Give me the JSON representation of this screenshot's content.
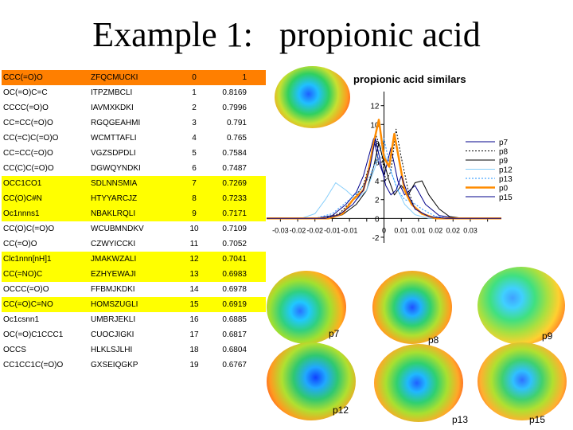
{
  "slide": {
    "title": "Example 1:   propionic acid"
  },
  "table": {
    "rows": [
      {
        "smiles": "CCC(=O)O",
        "code": "ZFQCMUCKI",
        "rank": "0",
        "score": "1",
        "highlight": "orange"
      },
      {
        "smiles": "OC(=O)C=C",
        "code": "ITPZMBCLI",
        "rank": "1",
        "score": "0.8169",
        "highlight": "none"
      },
      {
        "smiles": "CCCC(=O)O",
        "code": "IAVMXKDKI",
        "rank": "2",
        "score": "0.7996",
        "highlight": "none"
      },
      {
        "smiles": "CC=CC(=O)O",
        "code": "RGQGEAHMI",
        "rank": "3",
        "score": "0.791",
        "highlight": "none"
      },
      {
        "smiles": "CC(=C)C(=O)O",
        "code": "WCMTTAFLI",
        "rank": "4",
        "score": "0.765",
        "highlight": "none"
      },
      {
        "smiles": "CC=CC(=O)O",
        "code": "VGZSDPDLI",
        "rank": "5",
        "score": "0.7584",
        "highlight": "none"
      },
      {
        "smiles": "CC(C)C(=O)O",
        "code": "DGWQYNDKI",
        "rank": "6",
        "score": "0.7487",
        "highlight": "none"
      },
      {
        "smiles": "OCC1CO1",
        "code": "SDLNNSMIA",
        "rank": "7",
        "score": "0.7269",
        "highlight": "yellow"
      },
      {
        "smiles": "CC(O)C#N",
        "code": "HTYYARCJZ",
        "rank": "8",
        "score": "0.7233",
        "highlight": "yellow"
      },
      {
        "smiles": "Oc1nnns1",
        "code": "NBAKLRQLI",
        "rank": "9",
        "score": "0.7171",
        "highlight": "yellow"
      },
      {
        "smiles": "CC(O)C(=O)O",
        "code": "WCUBMNDKV",
        "rank": "10",
        "score": "0.7109",
        "highlight": "none"
      },
      {
        "smiles": "CC(=O)O",
        "code": "CZWYICCKI",
        "rank": "11",
        "score": "0.7052",
        "highlight": "none"
      },
      {
        "smiles": "Clc1nnn[nH]1",
        "code": "JMAKWZALI",
        "rank": "12",
        "score": "0.7041",
        "highlight": "yellow"
      },
      {
        "smiles": "CC(=NO)C",
        "code": "EZHYEWAJI",
        "rank": "13",
        "score": "0.6983",
        "highlight": "yellow"
      },
      {
        "smiles": "OCCC(=O)O",
        "code": "FFBMJKDKI",
        "rank": "14",
        "score": "0.6978",
        "highlight": "none"
      },
      {
        "smiles": "CC(=O)C=NO",
        "code": "HOMSZUGLI",
        "rank": "15",
        "score": "0.6919",
        "highlight": "yellow"
      },
      {
        "smiles": "Oc1csnn1",
        "code": "UMBRJEKLI",
        "rank": "16",
        "score": "0.6885",
        "highlight": "none"
      },
      {
        "smiles": "OC(=O)C1CCC1",
        "code": "CUOCJIGKI",
        "rank": "17",
        "score": "0.6817",
        "highlight": "none"
      },
      {
        "smiles": "OCCS",
        "code": "HLKLSJLHI",
        "rank": "18",
        "score": "0.6804",
        "highlight": "none"
      },
      {
        "smiles": "CC1CC1C(=O)O",
        "code": "GXSEIQGKP",
        "rank": "19",
        "score": "0.6767",
        "highlight": "none"
      }
    ]
  },
  "chart_data": {
    "type": "line",
    "title": "propionic acid similars",
    "xlabel": "",
    "ylabel": "",
    "xlim": [
      -0.034,
      0.034
    ],
    "ylim": [
      -2.6,
      13.5
    ],
    "x_tick_values": [
      -0.03,
      -0.025,
      -0.02,
      -0.015,
      -0.01,
      -0.005,
      0,
      0.005,
      0.01,
      0.015,
      0.02,
      0.025,
      0.03
    ],
    "x_tick_labels": [
      "-0.03",
      "-0.02",
      "-0.02",
      "-0.01",
      "-0.01",
      "0",
      "0.01",
      "0.01",
      "0.02",
      "0.02",
      "0.03"
    ],
    "x_tick_label_values": [
      -0.03,
      -0.025,
      -0.02,
      -0.015,
      -0.01,
      0,
      0.005,
      0.01,
      0.015,
      0.02,
      0.025
    ],
    "y_tick_values": [
      12,
      10,
      8,
      6,
      4,
      2,
      0,
      -2
    ],
    "y_tick_labels": [
      "12",
      "10",
      "8",
      "6",
      "4",
      "2",
      "0",
      "-2"
    ],
    "legend_position": "right",
    "series": [
      {
        "name": "p7",
        "color": "#00008b",
        "dash": "",
        "width": 1,
        "points": [
          [
            -0.034,
            0
          ],
          [
            -0.02,
            0
          ],
          [
            -0.015,
            0.3
          ],
          [
            -0.011,
            1.5
          ],
          [
            -0.008,
            2.8
          ],
          [
            -0.006,
            4.5
          ],
          [
            -0.0045,
            6.5
          ],
          [
            -0.003,
            8.5
          ],
          [
            -0.0015,
            6
          ],
          [
            0,
            4.5
          ],
          [
            0.002,
            7.5
          ],
          [
            0.004,
            4
          ],
          [
            0.006,
            2.5
          ],
          [
            0.009,
            3.5
          ],
          [
            0.012,
            1.5
          ],
          [
            0.016,
            0.3
          ],
          [
            0.022,
            0
          ],
          [
            0.034,
            0
          ]
        ]
      },
      {
        "name": "p8",
        "color": "#000000",
        "dash": "2,2",
        "width": 1,
        "points": [
          [
            -0.034,
            0
          ],
          [
            -0.018,
            0
          ],
          [
            -0.013,
            0.5
          ],
          [
            -0.009,
            2
          ],
          [
            -0.006,
            3.5
          ],
          [
            -0.004,
            6
          ],
          [
            -0.0025,
            9
          ],
          [
            -0.001,
            7.5
          ],
          [
            0.0005,
            4
          ],
          [
            0.002,
            5
          ],
          [
            0.0035,
            9.5
          ],
          [
            0.005,
            6.5
          ],
          [
            0.007,
            3
          ],
          [
            0.009,
            1
          ],
          [
            0.013,
            0.2
          ],
          [
            0.02,
            0
          ],
          [
            0.034,
            0
          ]
        ]
      },
      {
        "name": "p9",
        "color": "#000000",
        "dash": "",
        "width": 1,
        "points": [
          [
            -0.034,
            0
          ],
          [
            -0.016,
            0
          ],
          [
            -0.012,
            0.4
          ],
          [
            -0.008,
            1.5
          ],
          [
            -0.005,
            3
          ],
          [
            -0.003,
            5.5
          ],
          [
            -0.0015,
            8
          ],
          [
            0,
            6
          ],
          [
            0.0015,
            4
          ],
          [
            0.003,
            2.5
          ],
          [
            0.005,
            3.5
          ],
          [
            0.007,
            2.5
          ],
          [
            0.009,
            3.8
          ],
          [
            0.011,
            4
          ],
          [
            0.013,
            2.5
          ],
          [
            0.016,
            1
          ],
          [
            0.019,
            0.2
          ],
          [
            0.023,
            0
          ],
          [
            0.034,
            0
          ]
        ]
      },
      {
        "name": "p12",
        "color": "#87cefa",
        "dash": "",
        "width": 1,
        "points": [
          [
            -0.034,
            0
          ],
          [
            -0.024,
            0
          ],
          [
            -0.02,
            0.5
          ],
          [
            -0.017,
            2
          ],
          [
            -0.014,
            3.8
          ],
          [
            -0.011,
            3
          ],
          [
            -0.008,
            2
          ],
          [
            -0.005,
            3
          ],
          [
            -0.002,
            6
          ],
          [
            0,
            7
          ],
          [
            0.002,
            5
          ],
          [
            0.004,
            3
          ],
          [
            0.006,
            1.5
          ],
          [
            0.009,
            0.4
          ],
          [
            0.013,
            0
          ],
          [
            0.034,
            0
          ]
        ]
      },
      {
        "name": "p13",
        "color": "#1e90ff",
        "dash": "2,2",
        "width": 1,
        "points": [
          [
            -0.034,
            0
          ],
          [
            -0.02,
            0
          ],
          [
            -0.015,
            0.5
          ],
          [
            -0.01,
            2
          ],
          [
            -0.007,
            3
          ],
          [
            -0.004,
            4.5
          ],
          [
            -0.002,
            6.5
          ],
          [
            0,
            8.5
          ],
          [
            0.002,
            5
          ],
          [
            0.004,
            3
          ],
          [
            0.006,
            2
          ],
          [
            0.008,
            1.8
          ],
          [
            0.011,
            1
          ],
          [
            0.015,
            0.2
          ],
          [
            0.02,
            0
          ],
          [
            0.034,
            0
          ]
        ]
      },
      {
        "name": "p0",
        "color": "#ff8c00",
        "dash": "",
        "width": 2.5,
        "points": [
          [
            -0.034,
            0
          ],
          [
            -0.016,
            0
          ],
          [
            -0.012,
            0.5
          ],
          [
            -0.009,
            2
          ],
          [
            -0.006,
            3
          ],
          [
            -0.0045,
            5
          ],
          [
            -0.003,
            8
          ],
          [
            -0.0015,
            10.5
          ],
          [
            0,
            6.5
          ],
          [
            0.0015,
            5.5
          ],
          [
            0.003,
            9
          ],
          [
            0.0045,
            6
          ],
          [
            0.006,
            3
          ],
          [
            0.008,
            1.5
          ],
          [
            0.011,
            0.5
          ],
          [
            0.015,
            0
          ],
          [
            0.034,
            0
          ]
        ]
      },
      {
        "name": "p15",
        "color": "#00008b",
        "dash": "",
        "width": 1,
        "points": [
          [
            -0.034,
            0
          ],
          [
            -0.017,
            0
          ],
          [
            -0.013,
            0.4
          ],
          [
            -0.009,
            1.5
          ],
          [
            -0.006,
            3
          ],
          [
            -0.004,
            5.5
          ],
          [
            -0.0025,
            8.5
          ],
          [
            -0.001,
            6
          ],
          [
            0.0005,
            3.5
          ],
          [
            0.002,
            2.5
          ],
          [
            0.0035,
            3
          ],
          [
            0.005,
            4.5
          ],
          [
            0.007,
            2.5
          ],
          [
            0.009,
            1
          ],
          [
            0.013,
            0.2
          ],
          [
            0.018,
            0
          ],
          [
            0.034,
            0
          ]
        ]
      }
    ]
  },
  "surfaces": {
    "labels": {
      "p7": "p7",
      "p8": "p8",
      "p9": "p9",
      "p12": "p12",
      "p13": "p13",
      "p15": "p15"
    }
  }
}
